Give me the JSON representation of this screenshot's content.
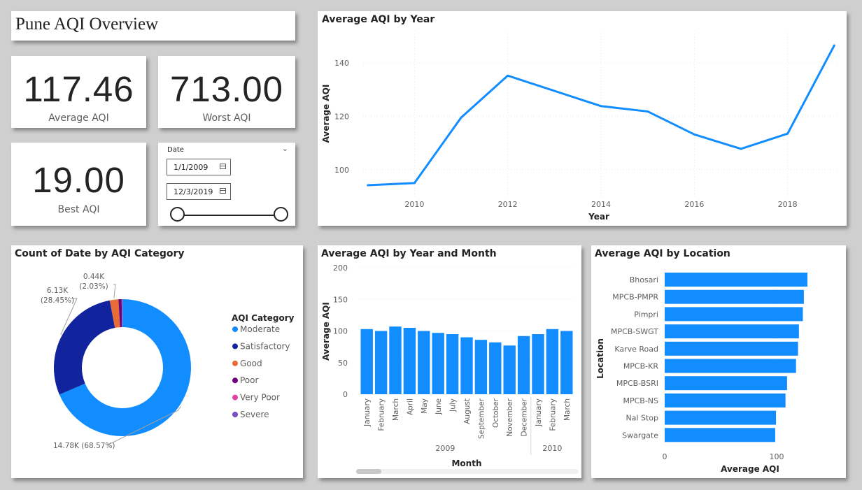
{
  "title": "Pune AQI Overview",
  "kpis": {
    "average": {
      "value": "117.46",
      "label": "Average AQI"
    },
    "worst": {
      "value": "713.00",
      "label": "Worst AQI"
    },
    "best": {
      "value": "19.00",
      "label": "Best AQI"
    }
  },
  "date_slicer": {
    "label": "Date",
    "start": "1/1/2009",
    "end": "12/3/2019",
    "range_selected": [
      0,
      1
    ]
  },
  "colors": {
    "blue": "#118dff",
    "navy": "#12239e",
    "orange": "#e66c37",
    "purple_dark": "#6b007b",
    "pink": "#e044a7",
    "violet": "#744ec2"
  },
  "icons": [
    "chevron-down-icon",
    "calendar-icon"
  ],
  "chart_data": [
    {
      "id": "line",
      "type": "line",
      "title": "Average AQI by Year",
      "xlabel": "Year",
      "ylabel": "Average AQI",
      "x": [
        2009,
        2010,
        2011,
        2012,
        2013,
        2014,
        2015,
        2016,
        2017,
        2018,
        2019
      ],
      "y": [
        94.2,
        95.0,
        119.5,
        135.2,
        129.5,
        123.8,
        121.8,
        113.2,
        107.8,
        113.5,
        146.5
      ],
      "xlim": [
        2008.9,
        2019.1
      ],
      "ylim": [
        90,
        152
      ],
      "xticks": [
        "2010",
        "2012",
        "2014",
        "2016",
        "2018"
      ],
      "yticks": [
        "100",
        "120",
        "140"
      ],
      "grid": true
    },
    {
      "id": "donut",
      "type": "pie",
      "title": "Count of Date by AQI Category",
      "legend_title": "AQI Category",
      "legend_position": "right",
      "slices": [
        {
          "name": "Moderate",
          "value": 14780,
          "label": "14.78K (68.57%)",
          "color": "#118dff"
        },
        {
          "name": "Satisfactory",
          "value": 6130,
          "label": "6.13K\n(28.45%)",
          "color": "#12239e"
        },
        {
          "name": "Good",
          "value": 440,
          "label": "0.44K\n(2.03%)",
          "color": "#e66c37"
        },
        {
          "name": "Poor",
          "value": 160,
          "label": "",
          "color": "#6b007b"
        },
        {
          "name": "Very Poor",
          "value": 30,
          "label": "",
          "color": "#e044a7"
        },
        {
          "name": "Severe",
          "value": 10,
          "label": "",
          "color": "#744ec2"
        }
      ]
    },
    {
      "id": "columns",
      "type": "bar",
      "title": "Average AQI by Year and Month",
      "xlabel": "Month",
      "ylabel": "Average AQI",
      "categories": [
        "January",
        "February",
        "March",
        "April",
        "May",
        "June",
        "July",
        "August",
        "September",
        "October",
        "November",
        "December",
        "January",
        "February",
        "March"
      ],
      "groups": [
        {
          "label": "2009",
          "count": 12
        },
        {
          "label": "2010",
          "count": 3
        }
      ],
      "values": [
        103,
        100,
        107,
        105,
        100,
        97,
        95,
        90,
        86,
        82,
        77,
        92,
        95,
        103,
        100
      ],
      "ylim": [
        0,
        200
      ],
      "yticks": [
        "0",
        "50",
        "100",
        "150",
        "200"
      ]
    },
    {
      "id": "hbars",
      "type": "bar",
      "orientation": "horizontal",
      "title": "Average AQI by Location",
      "xlabel": "Average AQI",
      "ylabel": "Location",
      "categories": [
        "Bhosari",
        "MPCB-PMPR",
        "Pimpri",
        "MPCB-SWGT",
        "Karve Road",
        "MPCB-KR",
        "MPCB-BSRI",
        "MPCB-NS",
        "Nal Stop",
        "Swargate"
      ],
      "values": [
        127.5,
        124.3,
        123.4,
        119.9,
        119.1,
        117.3,
        109.3,
        107.9,
        99.4,
        98.7
      ],
      "xlim": [
        0,
        150
      ],
      "xticks": [
        "0",
        "100"
      ]
    }
  ]
}
